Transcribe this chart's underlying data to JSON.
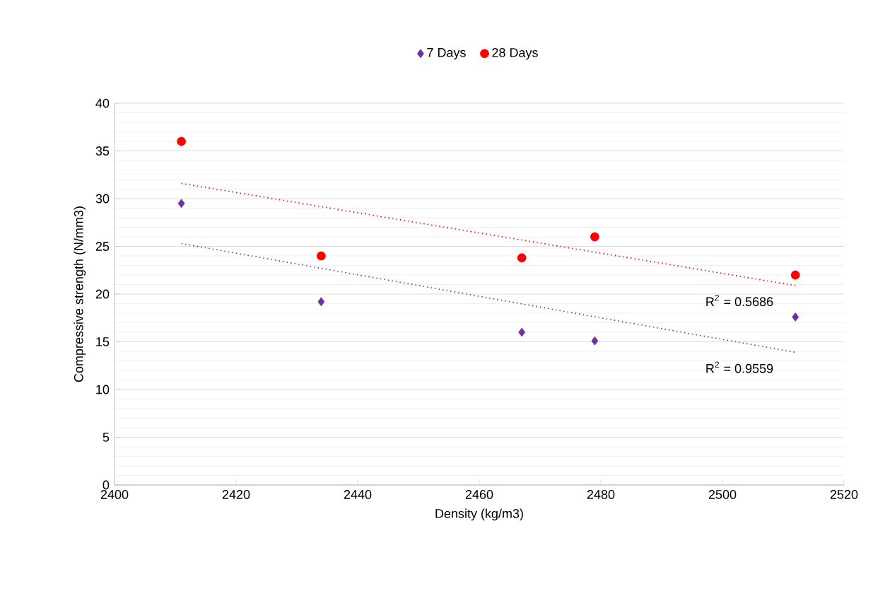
{
  "chart_data": {
    "type": "scatter",
    "xlabel": "Density (kg/m3)",
    "ylabel": "Compressive strength  (N/mm3)",
    "xlim": [
      2400,
      2520
    ],
    "xticks": [
      2400,
      2420,
      2440,
      2460,
      2480,
      2500,
      2520
    ],
    "ylim": [
      0,
      40
    ],
    "yticks": [
      0,
      5,
      10,
      15,
      20,
      25,
      30,
      35,
      40
    ],
    "grid": "y",
    "legend": "top",
    "series": [
      {
        "name": "7 Days",
        "color": "#7030a0",
        "marker": "diamond",
        "x": [
          2411,
          2434,
          2467,
          2479,
          2512
        ],
        "values": [
          29.5,
          19.2,
          16,
          15.1,
          17.6
        ]
      },
      {
        "name": "28 Days",
        "color": "#ff0000",
        "marker": "circle",
        "x": [
          2411,
          2434,
          2467,
          2479,
          2512
        ],
        "values": [
          36,
          24,
          23.8,
          26,
          22
        ]
      },
      {
        "type": "line",
        "color": "#ff0000",
        "line_style": "dotted",
        "marker": "none",
        "x": [
          2411,
          2512
        ],
        "values": [
          31.6,
          20.9
        ]
      },
      {
        "type": "line",
        "color": "#7030a0",
        "line_style": "dotted",
        "marker": "none",
        "x": [
          2411,
          2512
        ],
        "values": [
          25.3,
          13.9
        ]
      }
    ],
    "annotations": [
      "R$^{2}$ = 0.5686",
      "R$^{2}$ = 0.9559"
    ]
  }
}
